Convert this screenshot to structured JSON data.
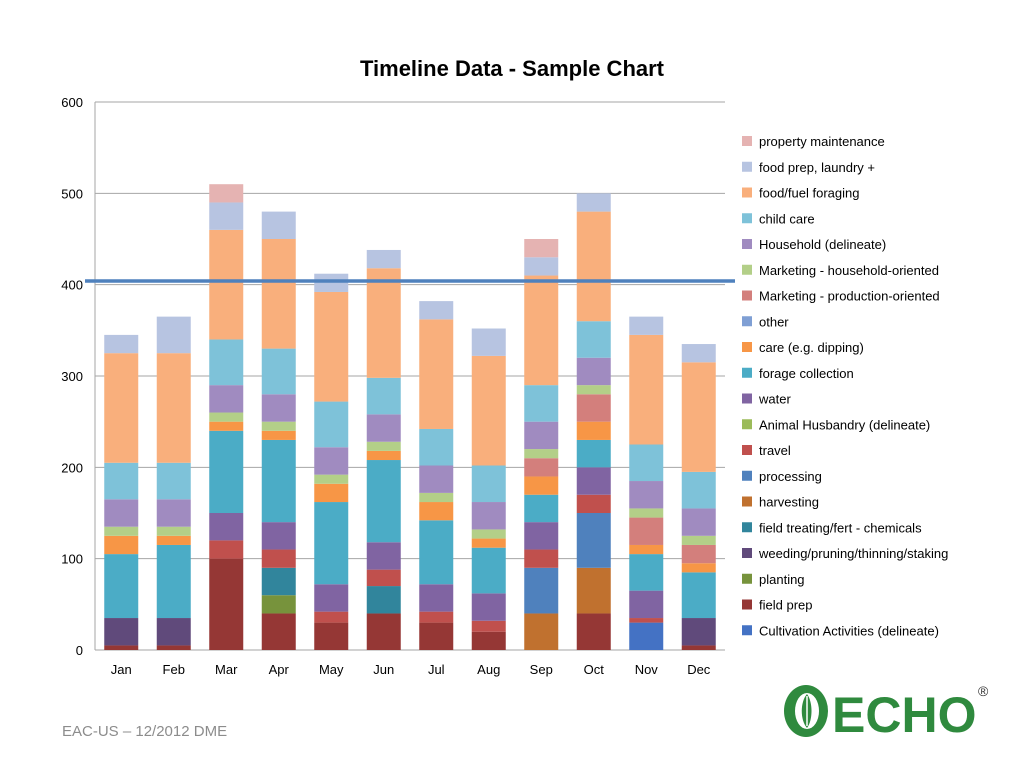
{
  "chart_data": {
    "type": "bar",
    "stacked": true,
    "title": "Timeline Data - Sample Chart",
    "xlabel": "",
    "ylabel": "",
    "ylim": [
      0,
      600
    ],
    "yticks": [
      0,
      100,
      200,
      300,
      400,
      500,
      600
    ],
    "grid": true,
    "legend_position": "right",
    "reference_line": 404,
    "categories": [
      "Jan",
      "Feb",
      "Mar",
      "Apr",
      "May",
      "Jun",
      "Jul",
      "Aug",
      "Sep",
      "Oct",
      "Nov",
      "Dec"
    ],
    "series": [
      {
        "name": "Cultivation Activities (delineate)",
        "color": "#4472C4",
        "values": [
          0,
          0,
          0,
          0,
          0,
          0,
          0,
          0,
          0,
          0,
          30,
          0
        ]
      },
      {
        "name": "field prep",
        "color": "#953735",
        "values": [
          5,
          5,
          100,
          40,
          30,
          40,
          30,
          20,
          0,
          40,
          0,
          5
        ]
      },
      {
        "name": "planting",
        "color": "#77933C",
        "values": [
          0,
          0,
          0,
          20,
          0,
          0,
          0,
          0,
          0,
          0,
          0,
          0
        ]
      },
      {
        "name": "weeding/pruning/thinning/staking",
        "color": "#604A7B",
        "values": [
          30,
          30,
          0,
          0,
          0,
          0,
          0,
          0,
          0,
          0,
          0,
          30
        ]
      },
      {
        "name": "field treating/fert - chemicals",
        "color": "#31859C",
        "values": [
          0,
          0,
          0,
          30,
          0,
          30,
          0,
          0,
          0,
          0,
          0,
          0
        ]
      },
      {
        "name": "harvesting",
        "color": "#C0712F",
        "values": [
          0,
          0,
          0,
          0,
          0,
          0,
          0,
          0,
          40,
          50,
          0,
          0
        ]
      },
      {
        "name": "processing",
        "color": "#4F81BD",
        "values": [
          0,
          0,
          0,
          0,
          0,
          0,
          0,
          0,
          50,
          60,
          0,
          0
        ]
      },
      {
        "name": "travel",
        "color": "#C0504D",
        "values": [
          0,
          0,
          20,
          20,
          12,
          18,
          12,
          12,
          20,
          20,
          5,
          0
        ]
      },
      {
        "name": "Animal Husbandry (delineate)",
        "color": "#9BBB59",
        "values": [
          0,
          0,
          0,
          0,
          0,
          0,
          0,
          0,
          0,
          0,
          0,
          0
        ]
      },
      {
        "name": "water",
        "color": "#8064A2",
        "values": [
          0,
          0,
          30,
          30,
          30,
          30,
          30,
          30,
          30,
          30,
          30,
          0
        ]
      },
      {
        "name": "forage collection",
        "color": "#4BACC6",
        "values": [
          70,
          80,
          90,
          90,
          90,
          90,
          70,
          50,
          30,
          30,
          40,
          50
        ]
      },
      {
        "name": "care (e.g. dipping)",
        "color": "#F79646",
        "values": [
          20,
          10,
          10,
          10,
          20,
          10,
          20,
          10,
          20,
          20,
          10,
          10
        ]
      },
      {
        "name": "other",
        "color": "#7F9FD4",
        "values": [
          0,
          0,
          0,
          0,
          0,
          0,
          0,
          0,
          0,
          0,
          0,
          0
        ]
      },
      {
        "name": "Marketing - production-oriented",
        "color": "#D37F7C",
        "values": [
          0,
          0,
          0,
          0,
          0,
          0,
          0,
          0,
          20,
          30,
          30,
          20
        ]
      },
      {
        "name": "Marketing - household-oriented",
        "color": "#B3CF88",
        "values": [
          10,
          10,
          10,
          10,
          10,
          10,
          10,
          10,
          10,
          10,
          10,
          10
        ]
      },
      {
        "name": "Household (delineate)",
        "color": "#A08BC0",
        "values": [
          30,
          30,
          30,
          30,
          30,
          30,
          30,
          30,
          30,
          30,
          30,
          30
        ]
      },
      {
        "name": "child care",
        "color": "#7EC2D9",
        "values": [
          40,
          40,
          50,
          50,
          50,
          40,
          40,
          40,
          40,
          40,
          40,
          40
        ]
      },
      {
        "name": "food/fuel foraging",
        "color": "#F9AF7C",
        "values": [
          120,
          120,
          120,
          120,
          120,
          120,
          120,
          120,
          120,
          120,
          120,
          120
        ]
      },
      {
        "name": "food prep, laundry +",
        "color": "#B7C4E1",
        "values": [
          20,
          40,
          30,
          30,
          20,
          20,
          20,
          30,
          20,
          20,
          20,
          20
        ]
      },
      {
        "name": "property maintenance",
        "color": "#E5B3B2",
        "values": [
          0,
          0,
          20,
          0,
          0,
          0,
          0,
          0,
          20,
          0,
          0,
          0
        ]
      }
    ]
  },
  "footer": "EAC-US – 12/2012 DME",
  "logo": {
    "text": "ECHO",
    "registered": "®"
  }
}
